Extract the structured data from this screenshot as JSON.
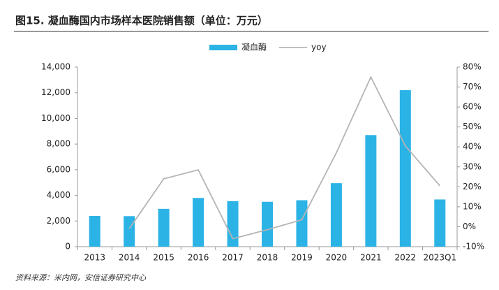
{
  "chart_data": {
    "type": "bar_line",
    "title": "图15. 凝血酶国内市场样本医院销售额（单位：万元）",
    "source": "资料来源：米内网，安信证券研究中心",
    "categories": [
      "2013",
      "2014",
      "2015",
      "2016",
      "2017",
      "2018",
      "2019",
      "2020",
      "2021",
      "2022",
      "2023Q1"
    ],
    "series": [
      {
        "name": "凝血酶",
        "type": "bar",
        "color": "#2bb3e6",
        "values": [
          2400,
          2380,
          2950,
          3800,
          3550,
          3500,
          3620,
          4950,
          8700,
          12200,
          3680
        ]
      },
      {
        "name": "yoy",
        "type": "line",
        "axis": "y2",
        "color": "#b4b4b4",
        "values": [
          null,
          -1,
          24,
          28.5,
          -6,
          -1.5,
          3.5,
          37,
          75,
          40.5,
          20.5
        ]
      }
    ],
    "ylim": [
      0,
      14000
    ],
    "yticks": [
      0,
      {
        "value": 2000,
        "label": "2,000"
      },
      {
        "value": 4000,
        "label": "4,000"
      },
      {
        "value": 6000,
        "label": "6,000"
      },
      {
        "value": 8000,
        "label": "8,000"
      },
      {
        "value": 10000,
        "label": "10,000"
      },
      {
        "value": 12000,
        "label": "12,000"
      },
      {
        "value": 14000,
        "label": "14,000"
      }
    ],
    "y2lim": [
      -10,
      80
    ],
    "y2ticks": [
      {
        "value": -10,
        "label": "-10%"
      },
      {
        "value": 0,
        "label": "0%"
      },
      {
        "value": 10,
        "label": "10%"
      },
      {
        "value": 20,
        "label": "20%"
      },
      {
        "value": 30,
        "label": "30%"
      },
      {
        "value": 40,
        "label": "40%"
      },
      {
        "value": 50,
        "label": "50%"
      },
      {
        "value": 60,
        "label": "60%"
      },
      {
        "value": 70,
        "label": "70%"
      },
      {
        "value": 80,
        "label": "80%"
      }
    ]
  }
}
